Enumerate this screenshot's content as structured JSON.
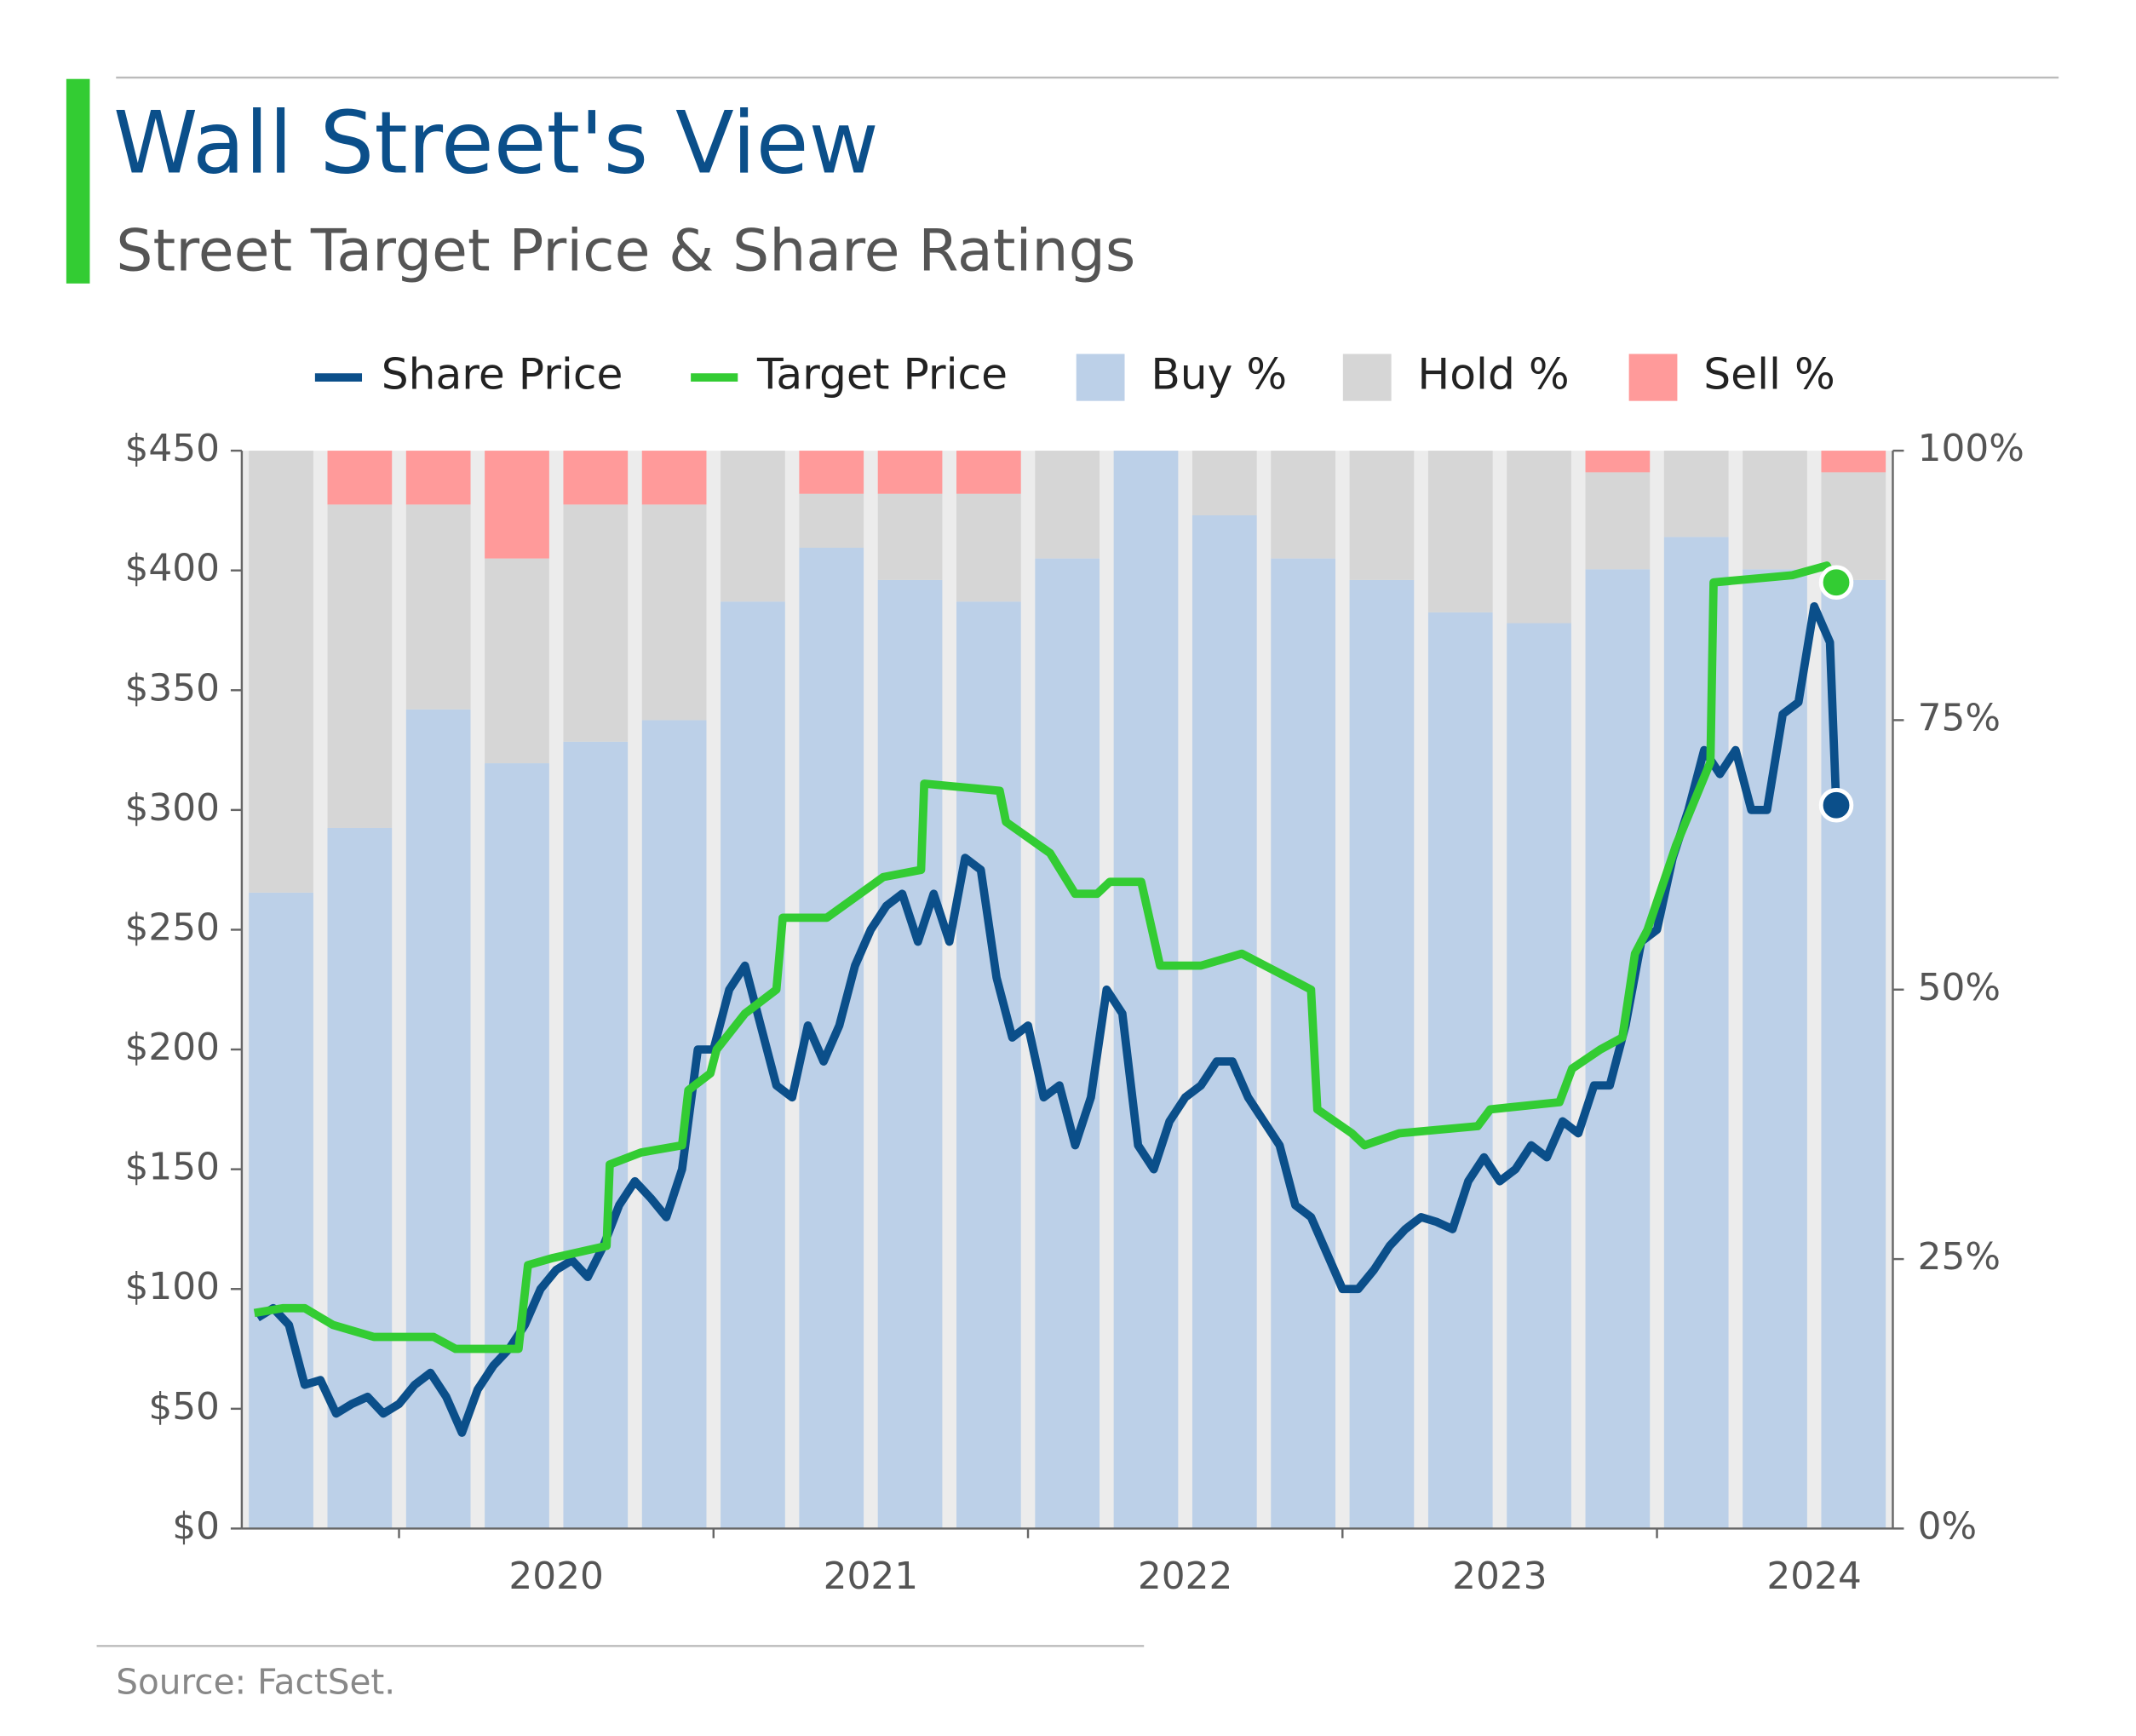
{
  "chart_data": {
    "type": "combo",
    "title": "Wall Street's View",
    "subtitle": "Street Target Price & Share Ratings",
    "source": "Source: FactSet.",
    "xlim": [
      2019.5,
      2024.75
    ],
    "xticks": [
      2020,
      2021,
      2022,
      2023,
      2024
    ],
    "ylim": [
      0,
      450
    ],
    "yticks": [
      {
        "value": 0,
        "label": "$0"
      },
      {
        "value": 50,
        "label": "$50"
      },
      {
        "value": 100,
        "label": "$100"
      },
      {
        "value": 150,
        "label": "$150"
      },
      {
        "value": 200,
        "label": "$200"
      },
      {
        "value": 250,
        "label": "$250"
      },
      {
        "value": 300,
        "label": "$300"
      },
      {
        "value": 350,
        "label": "$350"
      },
      {
        "value": 400,
        "label": "$400"
      },
      {
        "value": 450,
        "label": "$450"
      }
    ],
    "y2lim": [
      0,
      100
    ],
    "y2ticks": [
      {
        "value": 0,
        "label": "0%"
      },
      {
        "value": 25,
        "label": "25%"
      },
      {
        "value": 50,
        "label": "50%"
      },
      {
        "value": 75,
        "label": "75%"
      },
      {
        "value": 100,
        "label": "100%"
      }
    ],
    "series": [
      {
        "name": "Share Price",
        "type": "line",
        "color": "#0b4f8a",
        "x": [
          2019.55,
          2019.6,
          2019.65,
          2019.7,
          2019.75,
          2019.8,
          2019.85,
          2019.9,
          2019.95,
          2020.0,
          2020.05,
          2020.1,
          2020.15,
          2020.2,
          2020.25,
          2020.3,
          2020.35,
          2020.4,
          2020.45,
          2020.5,
          2020.55,
          2020.6,
          2020.65,
          2020.7,
          2020.75,
          2020.8,
          2020.85,
          2020.9,
          2020.95,
          2021.0,
          2021.05,
          2021.1,
          2021.15,
          2021.2,
          2021.25,
          2021.3,
          2021.35,
          2021.4,
          2021.45,
          2021.5,
          2021.55,
          2021.6,
          2021.65,
          2021.7,
          2021.75,
          2021.8,
          2021.85,
          2021.9,
          2021.95,
          2022.0,
          2022.05,
          2022.1,
          2022.15,
          2022.2,
          2022.25,
          2022.3,
          2022.35,
          2022.4,
          2022.45,
          2022.5,
          2022.55,
          2022.6,
          2022.65,
          2022.7,
          2022.75,
          2022.8,
          2022.85,
          2022.9,
          2022.95,
          2023.0,
          2023.05,
          2023.1,
          2023.15,
          2023.2,
          2023.25,
          2023.3,
          2023.35,
          2023.4,
          2023.45,
          2023.5,
          2023.55,
          2023.6,
          2023.65,
          2023.7,
          2023.75,
          2023.8,
          2023.85,
          2023.9,
          2023.95,
          2024.0,
          2024.05,
          2024.1,
          2024.15,
          2024.2,
          2024.25,
          2024.3,
          2024.35,
          2024.4,
          2024.45,
          2024.5,
          2024.55,
          2024.57
        ],
        "values": [
          88,
          92,
          85,
          60,
          62,
          48,
          52,
          55,
          48,
          52,
          60,
          65,
          55,
          40,
          58,
          68,
          75,
          85,
          100,
          108,
          112,
          105,
          118,
          135,
          145,
          138,
          130,
          150,
          200,
          200,
          225,
          235,
          210,
          185,
          180,
          210,
          195,
          210,
          235,
          250,
          260,
          265,
          245,
          265,
          245,
          280,
          275,
          230,
          205,
          210,
          180,
          185,
          160,
          180,
          225,
          215,
          160,
          150,
          170,
          180,
          185,
          195,
          195,
          180,
          170,
          160,
          135,
          130,
          115,
          100,
          100,
          108,
          118,
          125,
          130,
          128,
          125,
          145,
          155,
          145,
          150,
          160,
          155,
          170,
          165,
          185,
          185,
          210,
          245,
          250,
          280,
          300,
          325,
          315,
          325,
          300,
          300,
          340,
          345,
          385,
          370,
          302
        ]
      },
      {
        "name": "Target Price",
        "type": "line",
        "color": "#33cc33",
        "x": [
          2019.54,
          2019.63,
          2019.7,
          2019.79,
          2019.92,
          2020.11,
          2020.18,
          2020.38,
          2020.41,
          2020.49,
          2020.66,
          2020.67,
          2020.77,
          2020.9,
          2020.92,
          2020.99,
          2021.01,
          2021.1,
          2021.2,
          2021.22,
          2021.36,
          2021.54,
          2021.66,
          2021.67,
          2021.91,
          2021.93,
          2022.07,
          2022.15,
          2022.22,
          2022.26,
          2022.36,
          2022.42,
          2022.55,
          2022.68,
          2022.9,
          2022.92,
          2023.03,
          2023.07,
          2023.18,
          2023.43,
          2023.47,
          2023.69,
          2023.73,
          2023.82,
          2023.89,
          2023.93,
          2023.97,
          2024.06,
          2024.17,
          2024.18,
          2024.43,
          2024.54,
          2024.57
        ],
        "values": [
          90,
          92,
          92,
          85,
          80,
          80,
          75,
          75,
          110,
          113,
          118,
          152,
          157,
          160,
          183,
          190,
          200,
          215,
          225,
          255,
          255,
          272,
          275,
          311,
          308,
          295,
          282,
          265,
          265,
          270,
          270,
          235,
          235,
          240,
          225,
          175,
          165,
          160,
          165,
          168,
          175,
          178,
          192,
          200,
          205,
          240,
          250,
          285,
          320,
          395,
          398,
          402,
          395
        ]
      },
      {
        "name": "Buy %",
        "type": "bar",
        "axis": "y2",
        "color": "#bcd0e8",
        "x": [
          2019.625,
          2019.875,
          2020.125,
          2020.375,
          2020.625,
          2020.875,
          2021.125,
          2021.375,
          2021.625,
          2021.875,
          2022.125,
          2022.375,
          2022.625,
          2022.875,
          2023.125,
          2023.375,
          2023.625,
          2023.875,
          2024.125,
          2024.375,
          2024.625
        ],
        "values": [
          59,
          65,
          76,
          71,
          73,
          75,
          86,
          91,
          88,
          86,
          90,
          100,
          94,
          90,
          88,
          85,
          84,
          89,
          92,
          89,
          88
        ]
      },
      {
        "name": "Hold %",
        "type": "bar",
        "axis": "y2",
        "color": "#d6d6d6",
        "x": [
          2019.625,
          2019.875,
          2020.125,
          2020.375,
          2020.625,
          2020.875,
          2021.125,
          2021.375,
          2021.625,
          2021.875,
          2022.125,
          2022.375,
          2022.625,
          2022.875,
          2023.125,
          2023.375,
          2023.625,
          2023.875,
          2024.125,
          2024.375,
          2024.625
        ],
        "values": [
          41,
          30,
          19,
          19,
          22,
          20,
          14,
          5,
          8,
          10,
          10,
          0,
          6,
          10,
          12,
          15,
          16,
          9,
          8,
          11,
          10
        ]
      },
      {
        "name": "Sell %",
        "type": "bar",
        "axis": "y2",
        "color": "#ff9a9a",
        "x": [
          2019.625,
          2019.875,
          2020.125,
          2020.375,
          2020.625,
          2020.875,
          2021.125,
          2021.375,
          2021.625,
          2021.875,
          2022.125,
          2022.375,
          2022.625,
          2022.875,
          2023.125,
          2023.375,
          2023.625,
          2023.875,
          2024.125,
          2024.375,
          2024.625
        ],
        "values": [
          0,
          5,
          5,
          10,
          5,
          5,
          0,
          4,
          4,
          4,
          0,
          0,
          0,
          0,
          0,
          0,
          0,
          2,
          0,
          0,
          2
        ]
      }
    ]
  }
}
